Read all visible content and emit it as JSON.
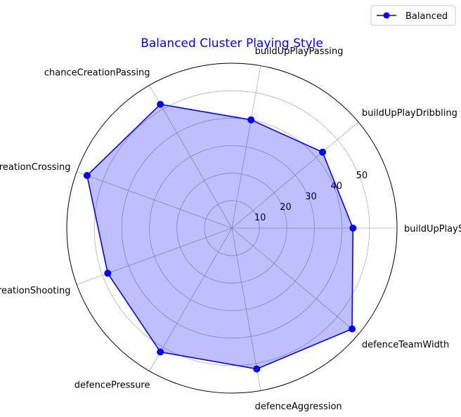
{
  "chart_data": {
    "type": "radar",
    "title": "Balanced Cluster Playing Style",
    "categories": [
      "buildUpPlaySpeed",
      "buildUpPlayDribbling",
      "buildUpPlayPassing",
      "chanceCreationPassing",
      "chanceCreationCrossing",
      "chanceCreationShooting",
      "defencePressure",
      "defenceAggression",
      "defenceTeamWidth"
    ],
    "series": [
      {
        "name": "Balanced",
        "values": [
          44,
          43,
          40,
          52,
          56,
          48,
          52,
          52,
          57
        ]
      }
    ],
    "radial_ticks": [
      10,
      20,
      30,
      40,
      50
    ],
    "rlim": [
      0,
      60
    ],
    "grid": true,
    "legend": "top-right",
    "colors": {
      "line": "#0000ff",
      "fill": "#0000ff",
      "title": "#0000ff",
      "grid": "#b0b0b0"
    }
  }
}
